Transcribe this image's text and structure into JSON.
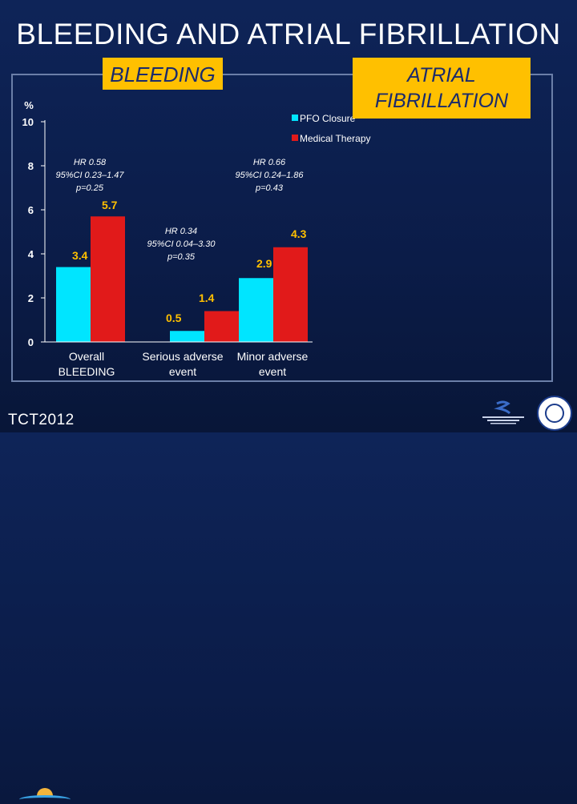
{
  "title": "BLEEDING AND ATRIAL FIBRILLATION",
  "callouts": {
    "bleeding": "BLEEDING",
    "af_line1": "ATRIAL",
    "af_line2": "FIBRILLATION"
  },
  "footer": {
    "logo_text": "TCT2012"
  },
  "colors": {
    "pfo": "#00e5ff",
    "medical": "#e11a1a",
    "callout": "#ffc000",
    "background": "#0b1f4f"
  },
  "chart_data": {
    "type": "bar",
    "ylabel": "%",
    "ylim": [
      0,
      10
    ],
    "yticks": [
      0,
      2,
      4,
      6,
      8,
      10
    ],
    "categories": [
      [
        "Overall",
        "BLEEDING"
      ],
      [
        "Serious adverse",
        "event"
      ],
      [
        "Minor adverse",
        "event"
      ]
    ],
    "series": [
      {
        "name": "PFO Closure",
        "color": "#00e5ff",
        "values": [
          3.4,
          0.5,
          2.9
        ],
        "labels": [
          "3.4",
          "0.5",
          "2.9"
        ]
      },
      {
        "name": "Medical Therapy",
        "color": "#e11a1a",
        "values": [
          5.7,
          1.4,
          4.3
        ],
        "labels": [
          "5.7",
          "1.4",
          "4.3"
        ]
      }
    ],
    "legend": "top-right",
    "annotations": [
      [
        "HR 0.58",
        "95%CI 0.23–1.47",
        "p=0.25"
      ],
      [
        "HR 0.34",
        "95%CI 0.04–3.30",
        "p=0.35"
      ],
      [
        "HR 0.66",
        "95%CI 0.24–1.86",
        "p=0.43"
      ]
    ]
  }
}
